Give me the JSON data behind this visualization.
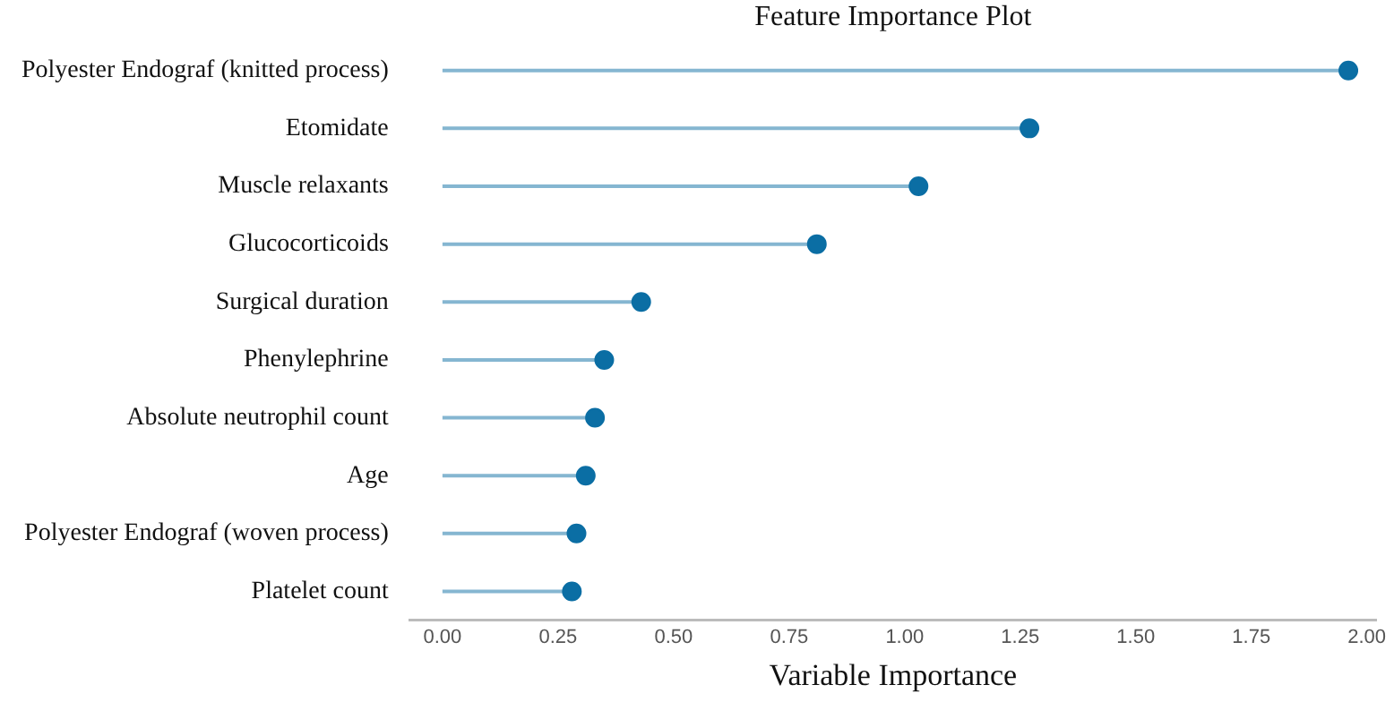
{
  "chart_data": {
    "type": "lollipop",
    "orientation": "horizontal",
    "title": "Feature Importance Plot",
    "xlabel": "Variable Importance",
    "categories": [
      "Polyester Endograf (knitted process)",
      "Etomidate",
      "Muscle relaxants",
      "Glucocorticoids",
      "Surgical duration",
      "Phenylephrine",
      "Absolute neutrophil count",
      "Age",
      "Polyester Endograf (woven process)",
      "Platelet count"
    ],
    "values": [
      1.96,
      1.27,
      1.03,
      0.81,
      0.43,
      0.35,
      0.33,
      0.31,
      0.29,
      0.28
    ],
    "color": "#0b6ea4",
    "xlim": [
      -0.07,
      2.02
    ],
    "xticks": [
      {
        "value": 0,
        "label": "0.00"
      },
      {
        "value": 0.25,
        "label": "0.25"
      },
      {
        "value": 0.5,
        "label": "0.50"
      },
      {
        "value": 0.75,
        "label": "0.75"
      },
      {
        "value": 1,
        "label": "1.00"
      },
      {
        "value": 1.25,
        "label": "1.25"
      },
      {
        "value": 1.5,
        "label": "1.50"
      },
      {
        "value": 1.75,
        "label": "1.75"
      },
      {
        "value": 2,
        "label": "2.00"
      }
    ],
    "grid": false,
    "marker": "circle"
  }
}
